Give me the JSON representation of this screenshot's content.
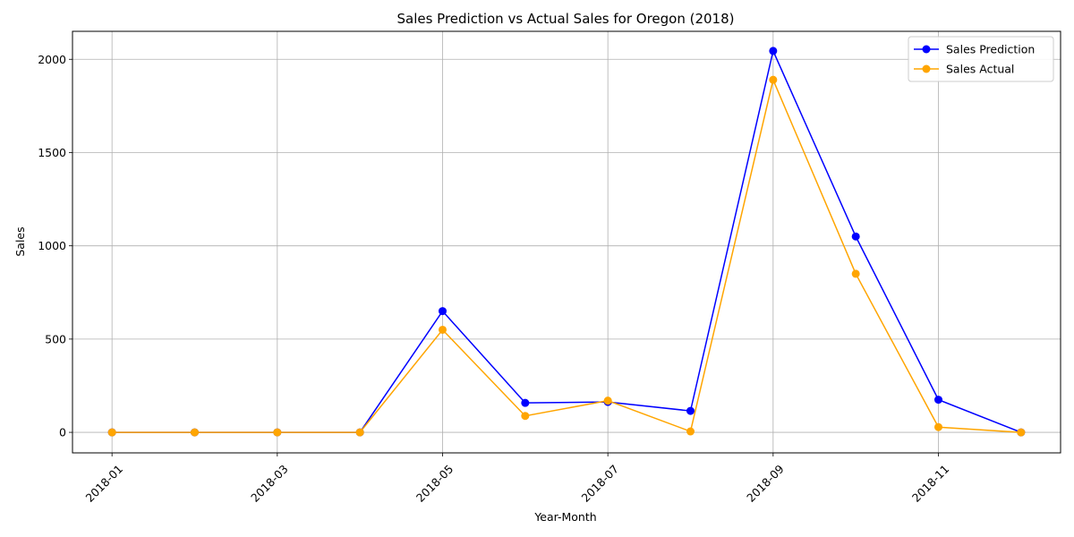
{
  "chart_data": {
    "type": "line",
    "title": "Sales Prediction vs Actual Sales for Oregon (2018)",
    "xlabel": "Year-Month",
    "ylabel": "Sales",
    "x": [
      "2018-01",
      "2018-02",
      "2018-03",
      "2018-04",
      "2018-05",
      "2018-06",
      "2018-07",
      "2018-08",
      "2018-09",
      "2018-10",
      "2018-11",
      "2018-12"
    ],
    "xticks": [
      "2018-01",
      "2018-03",
      "2018-05",
      "2018-07",
      "2018-09",
      "2018-11"
    ],
    "yticks": [
      0,
      500,
      1000,
      1500,
      2000
    ],
    "ylim": [
      -110,
      2150
    ],
    "grid": true,
    "legend_position": "top-right",
    "series": [
      {
        "name": "Sales Prediction",
        "color": "#0000ff",
        "marker": "circle",
        "values": [
          0,
          0,
          0,
          0,
          650,
          158,
          163,
          115,
          2045,
          1050,
          175,
          0
        ]
      },
      {
        "name": "Sales Actual",
        "color": "#ffa500",
        "marker": "circle",
        "values": [
          0,
          0,
          0,
          0,
          550,
          88,
          170,
          5,
          1890,
          850,
          28,
          0
        ]
      }
    ]
  }
}
